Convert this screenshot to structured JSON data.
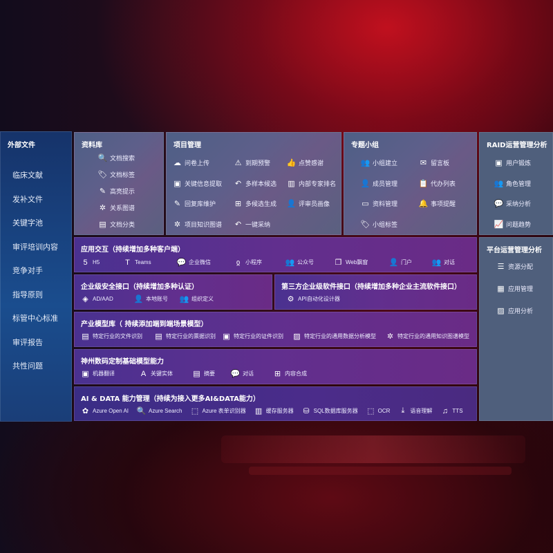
{
  "sidebar": {
    "title": "外部文件",
    "items": [
      "临床文献",
      "发补文件",
      "关键字池",
      "审评培训内容",
      "竞争对手",
      "指导原则",
      "标管中心标准",
      "审评报告",
      "共性问题"
    ]
  },
  "library": {
    "title": "资料库",
    "items": [
      {
        "label": "文档搜索",
        "icon": "doc-search-icon",
        "glyph": "🔍"
      },
      {
        "label": "文档标签",
        "icon": "tag-icon",
        "glyph": "🏷"
      },
      {
        "label": "高亮提示",
        "icon": "pen-icon",
        "glyph": "✎"
      },
      {
        "label": "关系图谱",
        "icon": "graph-icon",
        "glyph": "✲"
      },
      {
        "label": "文档分类",
        "icon": "folder-icon",
        "glyph": "▤"
      }
    ]
  },
  "project": {
    "title": "项目管理",
    "items": [
      {
        "label": "问卷上传",
        "icon": "cloud-upload-icon",
        "glyph": "☁"
      },
      {
        "label": "到期预警",
        "icon": "alarm-icon",
        "glyph": "⚠"
      },
      {
        "label": "点赞感谢",
        "icon": "thumbs-up-icon",
        "glyph": "👍"
      },
      {
        "label": "关键信息提取",
        "icon": "window-icon",
        "glyph": "▣"
      },
      {
        "label": "多样本候选",
        "icon": "reply-icon",
        "glyph": "↶"
      },
      {
        "label": "内部专家排名",
        "icon": "ranking-icon",
        "glyph": "▥"
      },
      {
        "label": "回复库维护",
        "icon": "edit-icon",
        "glyph": "✎"
      },
      {
        "label": "多候选生成",
        "icon": "puzzle-icon",
        "glyph": "⊞"
      },
      {
        "label": "评审员画像",
        "icon": "user-icon",
        "glyph": "👤"
      },
      {
        "label": "项目知识图谱",
        "icon": "graph-icon",
        "glyph": "✲"
      },
      {
        "label": "一键采纳",
        "icon": "reply-icon",
        "glyph": "↶"
      }
    ]
  },
  "group": {
    "title": "专题小组",
    "items": [
      {
        "label": "小组建立",
        "icon": "group-icon",
        "glyph": "👥"
      },
      {
        "label": "留言板",
        "icon": "bbs-icon",
        "glyph": "✉"
      },
      {
        "label": "成员管理",
        "icon": "user-add-icon",
        "glyph": "👤"
      },
      {
        "label": "代办列表",
        "icon": "clipboard-icon",
        "glyph": "📋"
      },
      {
        "label": "资料管理",
        "icon": "folder-icon",
        "glyph": "▭"
      },
      {
        "label": "事项提醒",
        "icon": "bell-icon",
        "glyph": "🔔"
      },
      {
        "label": "小组标签",
        "icon": "tag-icon",
        "glyph": "🏷"
      }
    ]
  },
  "raid": {
    "title": "RAID运营管理分析",
    "items": [
      {
        "label": "用户锻炼",
        "icon": "id-card-icon",
        "glyph": "▣"
      },
      {
        "label": "角色管理",
        "icon": "users-icon",
        "glyph": "👥"
      },
      {
        "label": "采纳分析",
        "icon": "qa-icon",
        "glyph": "💬"
      },
      {
        "label": "问题趋势",
        "icon": "trend-icon",
        "glyph": "📈"
      }
    ]
  },
  "platform": {
    "title": "平台运营管理分析",
    "items": [
      {
        "label": "资源分配",
        "icon": "checklist-icon",
        "glyph": "☰"
      },
      {
        "label": "应用管理",
        "icon": "apps-icon",
        "glyph": "▦"
      },
      {
        "label": "应用分析",
        "icon": "chart-icon",
        "glyph": "▨"
      }
    ]
  },
  "interaction": {
    "title": "应用交互（持续增加多种客户端）",
    "items": [
      {
        "label": "H5",
        "icon": "html5-icon",
        "glyph": "5"
      },
      {
        "label": "Teams",
        "icon": "teams-icon",
        "glyph": "T"
      },
      {
        "label": "企业微信",
        "icon": "wechat-icon",
        "glyph": "💬"
      },
      {
        "label": "小程序",
        "icon": "mini-program-icon",
        "glyph": "ჲ"
      },
      {
        "label": "公众号",
        "icon": "people-icon",
        "glyph": "👥"
      },
      {
        "label": "Web飘窗",
        "icon": "window-icon",
        "glyph": "❐"
      },
      {
        "label": "门户",
        "icon": "portal-icon",
        "glyph": "👤"
      },
      {
        "label": "对话",
        "icon": "chat-icon",
        "glyph": "👥"
      }
    ]
  },
  "security": {
    "title": "企业级安全接口（持续增加多种认证）",
    "items": [
      {
        "label": "AD/AAD",
        "icon": "ad-icon",
        "glyph": "◈"
      },
      {
        "label": "本地账号",
        "icon": "account-icon",
        "glyph": "👤"
      },
      {
        "label": "组织定义",
        "icon": "org-icon",
        "glyph": "👥"
      }
    ]
  },
  "thirdparty": {
    "title": "第三方企业级软件接口（持续增加多种企业主流软件接口）",
    "items": [
      {
        "label": "API自动化设计器",
        "icon": "gear-icon",
        "glyph": "⚙"
      }
    ]
  },
  "industry": {
    "title": "产业模型库（ 持续添加端到端场景模型）",
    "items": [
      {
        "label": "特定行业的文件识别",
        "icon": "file-icon",
        "glyph": "▤"
      },
      {
        "label": "特定行业的票据识别",
        "icon": "receipt-icon",
        "glyph": "▤"
      },
      {
        "label": "特定行业的证件识别",
        "icon": "id-card-icon",
        "glyph": "▣"
      },
      {
        "label": "特定行业的通用数据分析模型",
        "icon": "image-icon",
        "glyph": "▨"
      },
      {
        "label": "特定行业的通用知识图谱模型",
        "icon": "graph-icon",
        "glyph": "✲"
      }
    ]
  },
  "foundation": {
    "title": "神州数码定制基础模型能力",
    "items": [
      {
        "label": "机器翻译",
        "icon": "translate-icon",
        "glyph": "▣"
      },
      {
        "label": "关键实体",
        "icon": "entity-icon",
        "glyph": "A"
      },
      {
        "label": "摘要",
        "icon": "summary-icon",
        "glyph": "▤"
      },
      {
        "label": "对话",
        "icon": "chat-icon",
        "glyph": "💬"
      },
      {
        "label": "内容合成",
        "icon": "puzzle-icon",
        "glyph": "⊞"
      }
    ]
  },
  "aidata": {
    "title": "AI & DATA 能力管理（持续为接入更多AI&DATA能力）",
    "items": [
      {
        "label": "Azure Open AI",
        "icon": "openai-icon",
        "glyph": "✿"
      },
      {
        "label": "Azure Search",
        "icon": "search-icon",
        "glyph": "🔍"
      },
      {
        "label": "Azure 表单识别器",
        "icon": "form-icon",
        "glyph": "⬚"
      },
      {
        "label": "缓存服务器",
        "icon": "cache-icon",
        "glyph": "▥"
      },
      {
        "label": "SQL数据库服务器",
        "icon": "database-icon",
        "glyph": "⛁"
      },
      {
        "label": "OCR",
        "icon": "ocr-icon",
        "glyph": "⬚"
      },
      {
        "label": "语音理解",
        "icon": "voice-icon",
        "glyph": "⤓"
      },
      {
        "label": "TTS",
        "icon": "tts-icon",
        "glyph": "♫"
      }
    ]
  }
}
